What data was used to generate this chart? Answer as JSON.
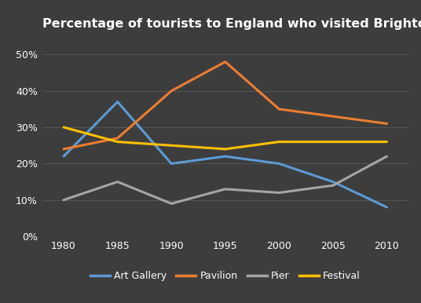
{
  "title": "Percentage of tourists to England who visited Brighton attractions",
  "years": [
    1980,
    1985,
    1990,
    1995,
    2000,
    2005,
    2010
  ],
  "series": {
    "Art Gallery": {
      "values": [
        22,
        37,
        20,
        22,
        20,
        15,
        8
      ],
      "color": "#5B9BD5"
    },
    "Pavilion": {
      "values": [
        24,
        27,
        40,
        48,
        35,
        33,
        31
      ],
      "color": "#ED7D31"
    },
    "Pier": {
      "values": [
        10,
        15,
        9,
        13,
        12,
        14,
        22
      ],
      "color": "#A5A5A5"
    },
    "Festival": {
      "values": [
        30,
        26,
        25,
        24,
        26,
        26,
        26
      ],
      "color": "#FFC000"
    }
  },
  "ylim": [
    0,
    55
  ],
  "yticks": [
    0,
    10,
    20,
    30,
    40,
    50
  ],
  "xlim": [
    1978,
    2012
  ],
  "background_color": "#3D3D3D",
  "grid_color": "#555555",
  "text_color": "#FFFFFF",
  "title_fontsize": 11.5,
  "legend_fontsize": 9,
  "tick_fontsize": 9,
  "line_width": 2.2
}
